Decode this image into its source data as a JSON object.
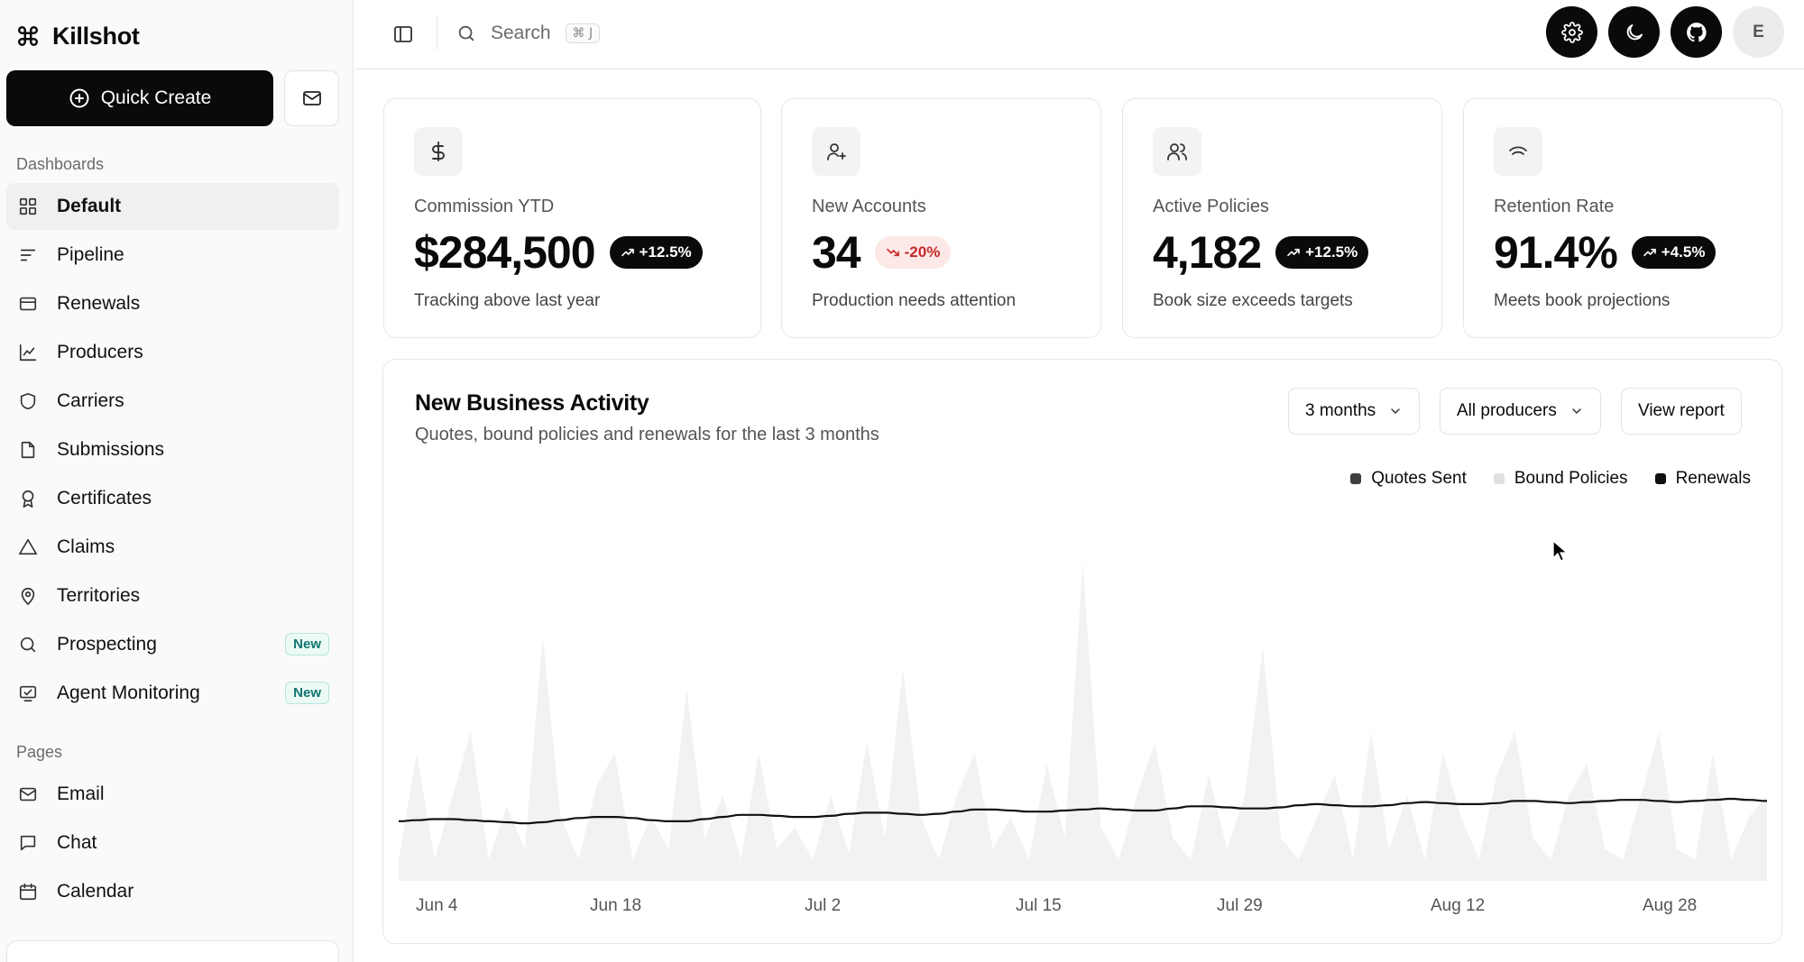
{
  "app": {
    "name": "Killshot"
  },
  "sidebar": {
    "quick_create_label": "Quick Create",
    "sections": [
      {
        "label": "Dashboards"
      },
      {
        "label": "Pages"
      }
    ],
    "items": [
      {
        "label": "Default"
      },
      {
        "label": "Pipeline"
      },
      {
        "label": "Renewals"
      },
      {
        "label": "Producers"
      },
      {
        "label": "Carriers"
      },
      {
        "label": "Submissions"
      },
      {
        "label": "Certificates"
      },
      {
        "label": "Claims"
      },
      {
        "label": "Territories"
      },
      {
        "label": "Prospecting",
        "badge": "New"
      },
      {
        "label": "Agent Monitoring",
        "badge": "New"
      },
      {
        "label": "Email"
      },
      {
        "label": "Chat"
      },
      {
        "label": "Calendar"
      }
    ]
  },
  "header": {
    "search_label": "Search",
    "search_shortcut": "⌘ J",
    "avatar_initial": "E"
  },
  "stats": [
    {
      "title": "Commission YTD",
      "value": "$284,500",
      "trend": "+12.5%",
      "trend_dir": "up",
      "subtitle": "Tracking above last year",
      "icon": "dollar-icon"
    },
    {
      "title": "New Accounts",
      "value": "34",
      "trend": "-20%",
      "trend_dir": "down",
      "subtitle": "Production needs attention",
      "icon": "user-plus-icon"
    },
    {
      "title": "Active Policies",
      "value": "4,182",
      "trend": "+12.5%",
      "trend_dir": "up",
      "subtitle": "Book size exceeds targets",
      "icon": "users-icon"
    },
    {
      "title": "Retention Rate",
      "value": "91.4%",
      "trend": "+4.5%",
      "trend_dir": "up",
      "subtitle": "Meets book projections",
      "icon": "arc-icon"
    }
  ],
  "activity": {
    "title": "New Business Activity",
    "description": "Quotes, bound policies and renewals for the last 3 months",
    "range_label": "3 months",
    "producer_label": "All producers",
    "view_report_label": "View report"
  },
  "colors": {
    "accent": "#0a0a0a",
    "quotes_sent": "#3f3f3f",
    "bound_policies": "#e0e0e0",
    "renewals": "#111111",
    "area_fill": "#f2f2f2",
    "trend_down_bg": "#fde8e8",
    "trend_down_text": "#c62828",
    "new_badge": "#0f766e"
  },
  "chart_data": {
    "type": "area",
    "x_ticks": [
      "Jun 4",
      "Jun 18",
      "Jul 2",
      "Jul 15",
      "Jul 29",
      "Aug 12",
      "Aug 28"
    ],
    "legend": [
      "Quotes Sent",
      "Bound Policies",
      "Renewals"
    ],
    "legend_position": "top-right",
    "grid": false,
    "series": [
      {
        "name": "Quotes Sent",
        "values": [
          20,
          120,
          20,
          80,
          140,
          20,
          70,
          30,
          230,
          60,
          20,
          90,
          120,
          20,
          60,
          30,
          180,
          40,
          80,
          20,
          120,
          30,
          50,
          20,
          80,
          25,
          130,
          40,
          200,
          60,
          20,
          80,
          120,
          30,
          60,
          20,
          110,
          40,
          300,
          50,
          20,
          80,
          130,
          40,
          20,
          100,
          30,
          80,
          220,
          40,
          20,
          60,
          100,
          20,
          140,
          30,
          80,
          20,
          120,
          60,
          20,
          100,
          140,
          40,
          20,
          80,
          110,
          30,
          20,
          80,
          140,
          30,
          20,
          120,
          20,
          60,
          80
        ]
      },
      {
        "name": "Bound Policies",
        "values": []
      },
      {
        "name": "Renewals",
        "values": [
          56,
          57,
          58,
          58,
          57,
          56,
          55,
          54,
          55,
          57,
          59,
          60,
          60,
          59,
          57,
          56,
          56,
          58,
          60,
          62,
          62,
          61,
          60,
          60,
          61,
          63,
          64,
          64,
          63,
          62,
          63,
          65,
          67,
          67,
          66,
          65,
          65,
          66,
          67,
          68,
          67,
          66,
          66,
          68,
          70,
          70,
          69,
          68,
          68,
          69,
          71,
          72,
          71,
          70,
          70,
          71,
          73,
          74,
          73,
          72,
          72,
          73,
          75,
          75,
          74,
          73,
          74,
          75,
          76,
          76,
          75,
          74,
          75,
          76,
          77,
          76,
          75
        ]
      }
    ]
  }
}
